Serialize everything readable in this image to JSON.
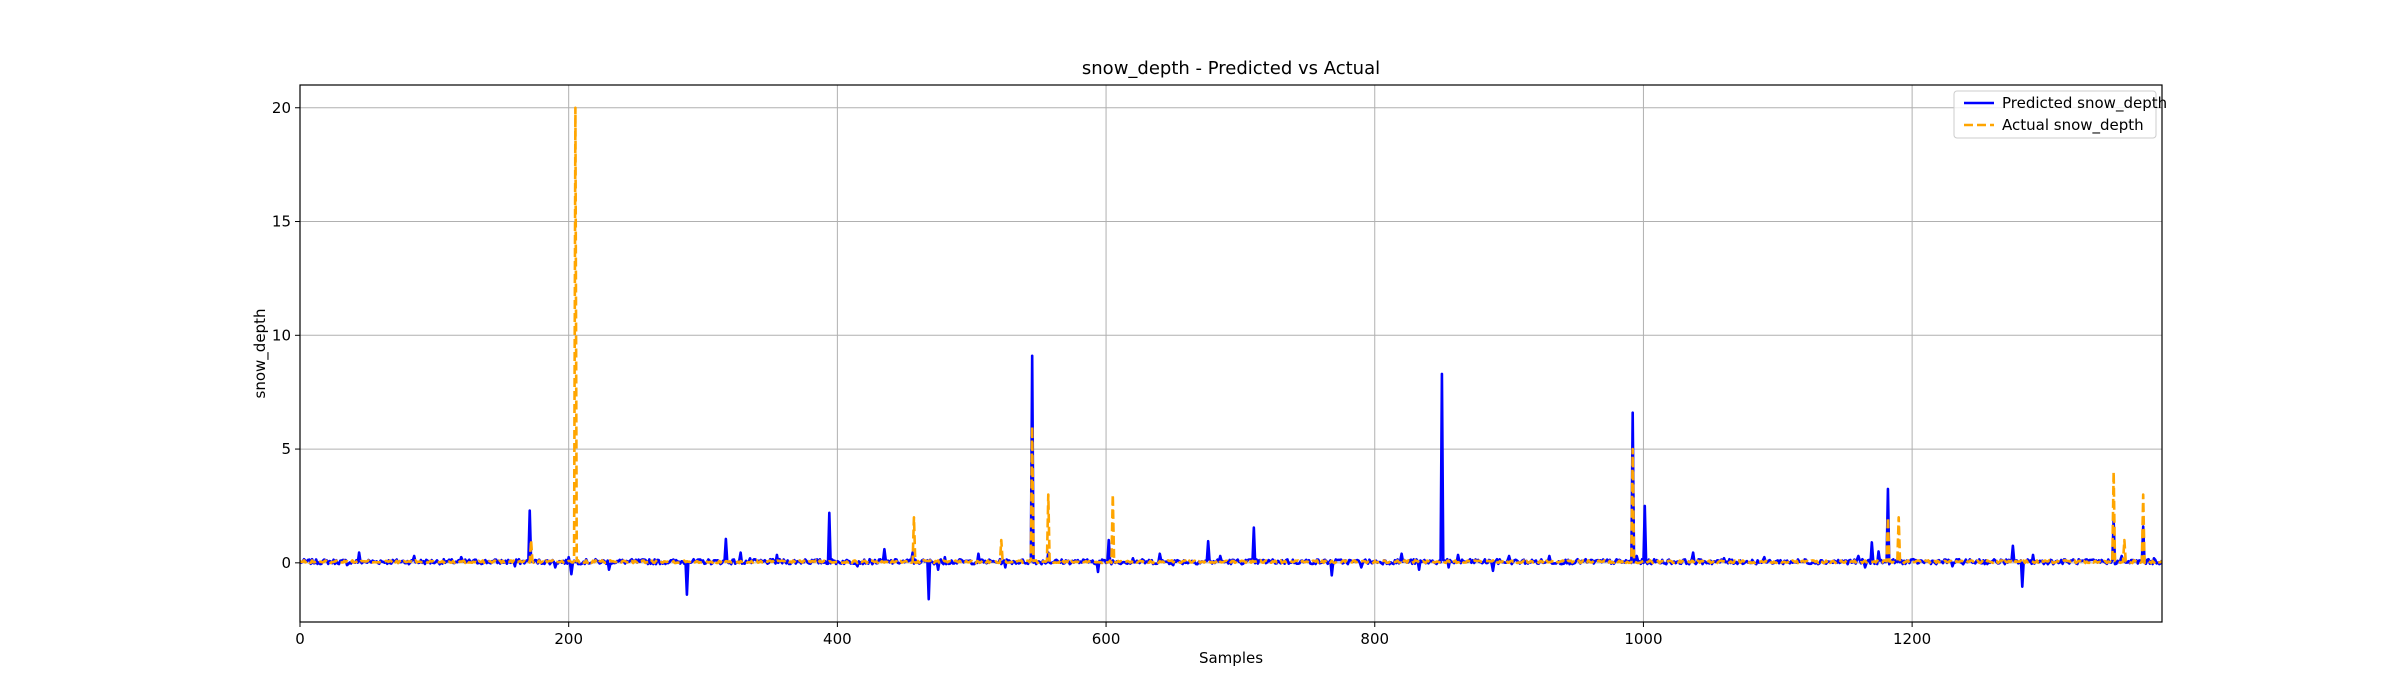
{
  "chart_data": {
    "type": "line",
    "title": "snow_depth - Predicted vs Actual",
    "xlabel": "Samples",
    "ylabel": "snow_depth",
    "xlim": [
      0,
      1386
    ],
    "ylim": [
      -2.6,
      21.0
    ],
    "xticks": [
      0,
      200,
      400,
      600,
      800,
      1000,
      1200
    ],
    "yticks": [
      0,
      5,
      10,
      15,
      20
    ],
    "grid": true,
    "legend_position": "top-right",
    "baseline": 0.05,
    "series": [
      {
        "name": "Predicted snow_depth",
        "color": "#0000ff",
        "style": "solid",
        "spikes": [
          [
            12,
            0.15
          ],
          [
            35,
            -0.1
          ],
          [
            44,
            0.45
          ],
          [
            60,
            0.1
          ],
          [
            85,
            0.3
          ],
          [
            120,
            0.25
          ],
          [
            160,
            -0.15
          ],
          [
            171,
            2.3
          ],
          [
            190,
            -0.2
          ],
          [
            200,
            0.25
          ],
          [
            202,
            -0.5
          ],
          [
            230,
            -0.3
          ],
          [
            260,
            0.15
          ],
          [
            288,
            -1.4
          ],
          [
            317,
            1.05
          ],
          [
            328,
            0.45
          ],
          [
            335,
            0.2
          ],
          [
            355,
            0.35
          ],
          [
            376,
            0.15
          ],
          [
            394,
            2.2
          ],
          [
            415,
            -0.15
          ],
          [
            435,
            0.6
          ],
          [
            456,
            0.45
          ],
          [
            468,
            -1.6
          ],
          [
            475,
            -0.3
          ],
          [
            480,
            0.25
          ],
          [
            505,
            0.4
          ],
          [
            525,
            -0.2
          ],
          [
            545,
            9.1
          ],
          [
            557,
            0.45
          ],
          [
            590,
            0.1
          ],
          [
            594,
            -0.4
          ],
          [
            602,
            1.0
          ],
          [
            620,
            0.2
          ],
          [
            640,
            0.4
          ],
          [
            650,
            -0.1
          ],
          [
            676,
            0.95
          ],
          [
            685,
            0.3
          ],
          [
            710,
            1.55
          ],
          [
            735,
            0.15
          ],
          [
            768,
            -0.55
          ],
          [
            790,
            -0.2
          ],
          [
            820,
            0.4
          ],
          [
            833,
            -0.3
          ],
          [
            850,
            8.3
          ],
          [
            855,
            -0.2
          ],
          [
            862,
            0.35
          ],
          [
            875,
            0.15
          ],
          [
            888,
            -0.35
          ],
          [
            900,
            0.3
          ],
          [
            930,
            0.3
          ],
          [
            970,
            0.15
          ],
          [
            992,
            6.6
          ],
          [
            995,
            0.3
          ],
          [
            1001,
            2.5
          ],
          [
            1037,
            0.45
          ],
          [
            1060,
            0.2
          ],
          [
            1090,
            0.25
          ],
          [
            1120,
            0.15
          ],
          [
            1160,
            0.3
          ],
          [
            1165,
            -0.2
          ],
          [
            1170,
            0.9
          ],
          [
            1175,
            0.5
          ],
          [
            1182,
            3.25
          ],
          [
            1200,
            0.15
          ],
          [
            1230,
            -0.15
          ],
          [
            1250,
            0.15
          ],
          [
            1262,
            0.1
          ],
          [
            1275,
            0.75
          ],
          [
            1282,
            -1.05
          ],
          [
            1290,
            0.35
          ],
          [
            1320,
            0.15
          ],
          [
            1350,
            1.9
          ],
          [
            1356,
            0.3
          ],
          [
            1372,
            1.6
          ],
          [
            1380,
            0.2
          ]
        ]
      },
      {
        "name": "Actual snow_depth",
        "color": "#ffa500",
        "style": "dashed",
        "spikes": [
          [
            172,
            1.0
          ],
          [
            205,
            20.0
          ],
          [
            457,
            2.0
          ],
          [
            522,
            1.0
          ],
          [
            545,
            6.0
          ],
          [
            557,
            3.0
          ],
          [
            605,
            3.0
          ],
          [
            992,
            5.0
          ],
          [
            1182,
            2.0
          ],
          [
            1190,
            2.0
          ],
          [
            1350,
            4.0
          ],
          [
            1358,
            1.0
          ],
          [
            1372,
            3.0
          ]
        ]
      }
    ]
  }
}
